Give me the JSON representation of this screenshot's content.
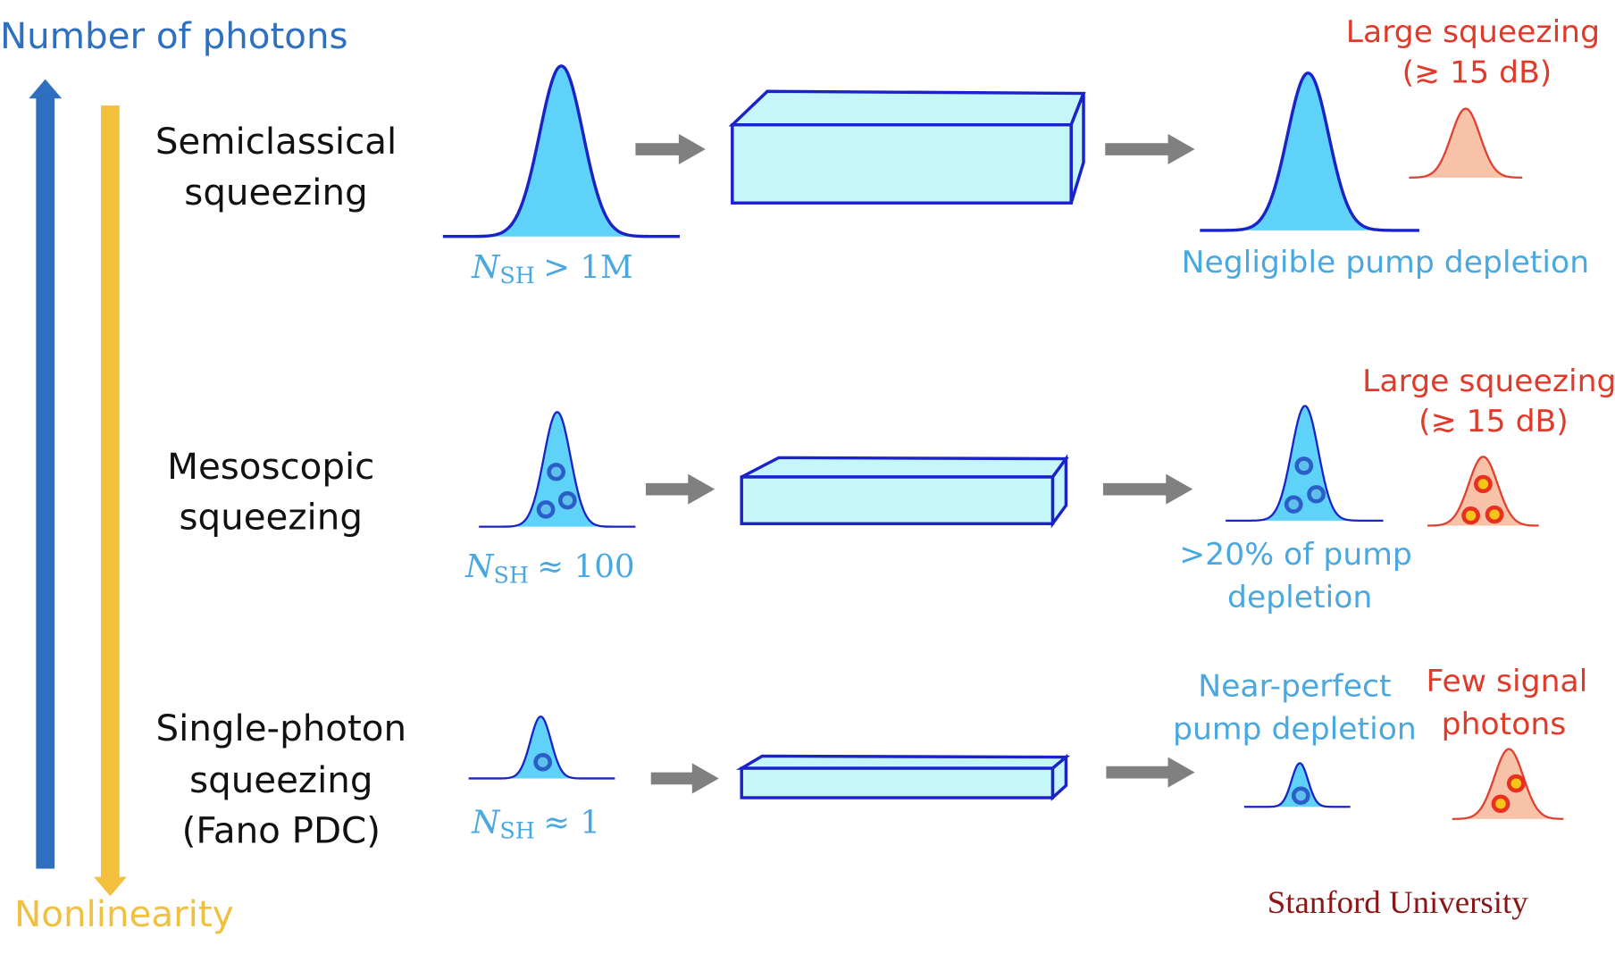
{
  "axes": {
    "top_label": "Number of photons",
    "bottom_label": "Nonlinearity"
  },
  "rows": [
    {
      "regime": [
        "Semiclassical",
        "squeezing"
      ],
      "photon_number": {
        "symbol": "N",
        "subscript": "SH",
        "relation": "> 1M"
      },
      "pump_note": [
        "Negligible pump depletion"
      ],
      "signal_note": [
        "Large squeezing",
        "(≳ 15 dB)"
      ]
    },
    {
      "regime": [
        "Mesoscopic",
        "squeezing"
      ],
      "photon_number": {
        "symbol": "N",
        "subscript": "SH",
        "relation": "≈ 100"
      },
      "pump_note": [
        ">20% of pump",
        "depletion"
      ],
      "signal_note": [
        "Large squeezing",
        "(≳ 15 dB)"
      ]
    },
    {
      "regime": [
        "Single-photon",
        "squeezing",
        "(Fano PDC)"
      ],
      "photon_number": {
        "symbol": "N",
        "subscript": "SH",
        "relation": "≈ 1"
      },
      "pump_note": [
        "Near-perfect",
        "pump depletion"
      ],
      "signal_note": [
        "Few signal",
        "photons"
      ]
    }
  ],
  "footer": "Stanford University"
}
